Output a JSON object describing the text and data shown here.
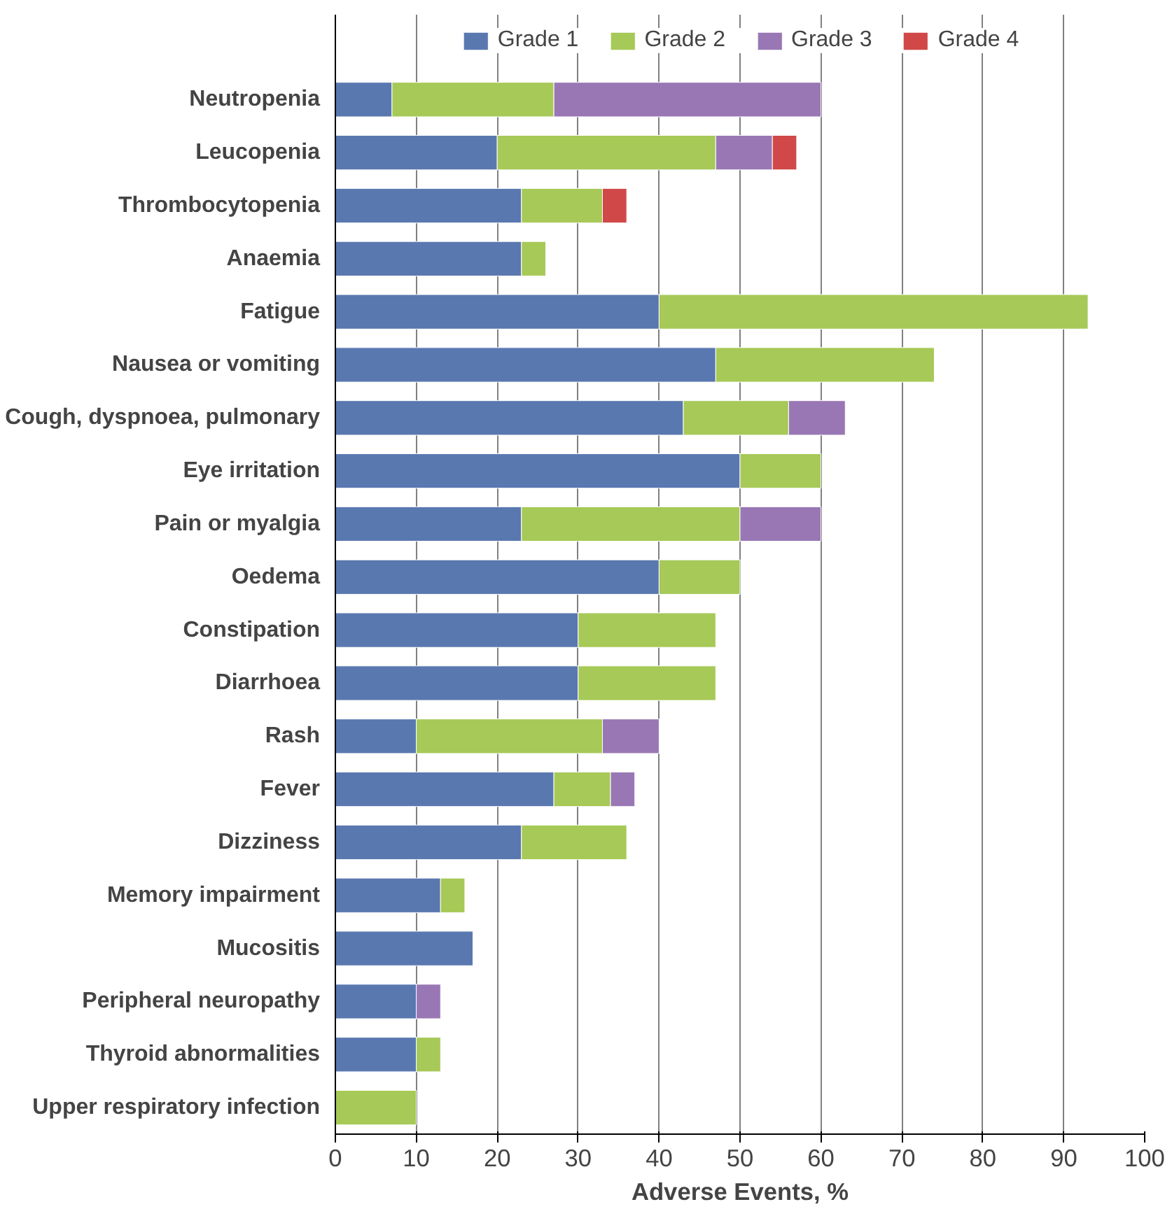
{
  "chart_data": {
    "type": "bar",
    "orientation": "horizontal",
    "stacked": true,
    "xlabel": "Adverse Events, %",
    "categories": [
      "Neutropenia",
      "Leucopenia",
      "Thrombocytopenia",
      "Anaemia",
      "Fatigue",
      "Nausea or vomiting",
      "Cough, dyspnoea, pulmonary",
      "Eye irritation",
      "Pain or myalgia",
      "Oedema",
      "Constipation",
      "Diarrhoea",
      "Rash",
      "Fever",
      "Dizziness",
      "Memory impairment",
      "Mucositis",
      "Peripheral neuropathy",
      "Thyroid abnormalities",
      "Upper respiratory infection"
    ],
    "series": [
      {
        "name": "Grade 1",
        "color": "#5a78b0",
        "values": [
          7,
          20,
          23,
          23,
          40,
          47,
          43,
          50,
          23,
          40,
          30,
          30,
          10,
          27,
          23,
          13,
          17,
          10,
          10,
          null
        ]
      },
      {
        "name": "Grade 2",
        "color": "#a6c957",
        "values": [
          20,
          27,
          10,
          3,
          53,
          27,
          13,
          10,
          27,
          10,
          17,
          17,
          23,
          7,
          13,
          3,
          null,
          null,
          3,
          10
        ]
      },
      {
        "name": "Grade 3",
        "color": "#9977b4",
        "values": [
          33,
          7,
          null,
          null,
          null,
          null,
          7,
          null,
          10,
          null,
          null,
          null,
          7,
          3,
          null,
          null,
          null,
          3,
          null,
          null
        ]
      },
      {
        "name": "Grade 4",
        "color": "#d04848",
        "values": [
          null,
          3,
          3,
          null,
          null,
          null,
          null,
          null,
          null,
          null,
          null,
          null,
          null,
          null,
          null,
          null,
          null,
          null,
          null,
          null
        ]
      }
    ],
    "xlim": [
      0,
      100
    ],
    "xticks": [
      0,
      10,
      20,
      30,
      40,
      50,
      60,
      70,
      80,
      90,
      100
    ],
    "grid": "x",
    "legend": "top"
  }
}
